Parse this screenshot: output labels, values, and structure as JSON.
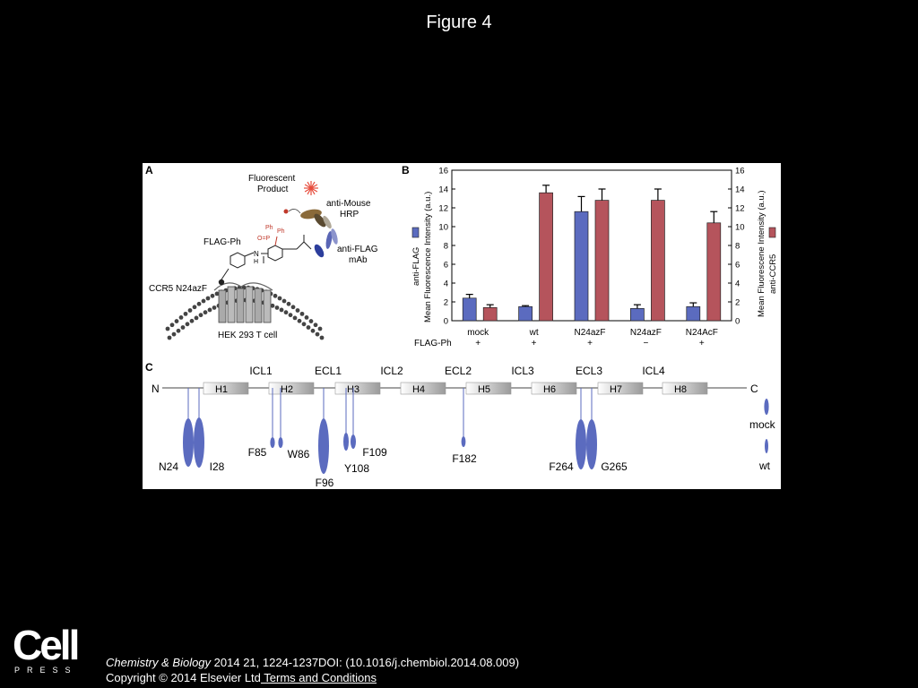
{
  "slide": {
    "title": "Figure 4"
  },
  "panel_a": {
    "label": "A",
    "fluorescent_product": [
      "Fluorescent",
      "Product"
    ],
    "anti_mouse_hrp": [
      "anti-Mouse",
      "HRP"
    ],
    "flag_ph": "FLAG-Ph",
    "anti_flag_mab": [
      "anti-FLAG",
      "mAb"
    ],
    "ccr5_n24azf": "CCR5 N24azF",
    "hek_cell": "HEK 293 T cell",
    "ph_label_1": "Ph",
    "ph_label_2": "Ph",
    "p_label": "O=P",
    "nh_label": "N",
    "h_label": "H"
  },
  "chart_data": {
    "type": "bar",
    "panel_label": "B",
    "categories": [
      "mock",
      "wt",
      "N24azF",
      "N24azF",
      "N24AcF"
    ],
    "flag_ph_row_label": "FLAG-Ph",
    "flag_ph": [
      "+",
      "+",
      "+",
      "−",
      "+"
    ],
    "series": [
      {
        "name": "anti-FLAG",
        "color": "#5b6bbf",
        "values": [
          2.4,
          1.5,
          11.6,
          1.3,
          1.5
        ],
        "errors": [
          0.4,
          0.1,
          1.6,
          0.4,
          0.4
        ]
      },
      {
        "name": "anti-CCR5",
        "color": "#b5545c",
        "values": [
          1.4,
          13.6,
          12.8,
          12.8,
          10.4
        ],
        "errors": [
          0.3,
          0.8,
          1.2,
          1.2,
          1.2
        ]
      }
    ],
    "ylabel_left": "Mean Fluorescence Intensity (a.u.)",
    "ylabel_right": "Mean Fluorescene Intensity (a.u.)",
    "ylim": [
      0,
      16
    ],
    "yticks": [
      "0",
      "2",
      "4",
      "6",
      "8",
      "10",
      "12",
      "14",
      "16"
    ],
    "grid": false
  },
  "panel_c": {
    "label": "C",
    "n_term": "N",
    "c_term": "C",
    "helices": [
      "H1",
      "H2",
      "H3",
      "H4",
      "H5",
      "H6",
      "H7",
      "H8"
    ],
    "loops": [
      "ICL1",
      "ECL1",
      "ICL2",
      "ECL2",
      "ICL3",
      "ECL3",
      "ICL4"
    ],
    "residues": [
      "N24",
      "I28",
      "F85",
      "W86",
      "F96",
      "Y108",
      "F109",
      "F182",
      "F264",
      "G265"
    ],
    "legend": [
      "mock",
      "wt"
    ]
  },
  "citation": {
    "journal": "Chemistry & Biology",
    "ref": " 2014 21, 1224-1237DOI: (10.1016/j.chembiol.2014.08.009)",
    "copyright": "Copyright © 2014 Elsevier Ltd",
    "terms": " Terms and Conditions"
  },
  "logo": {
    "word": "Cell",
    "sub": "PRESS"
  }
}
